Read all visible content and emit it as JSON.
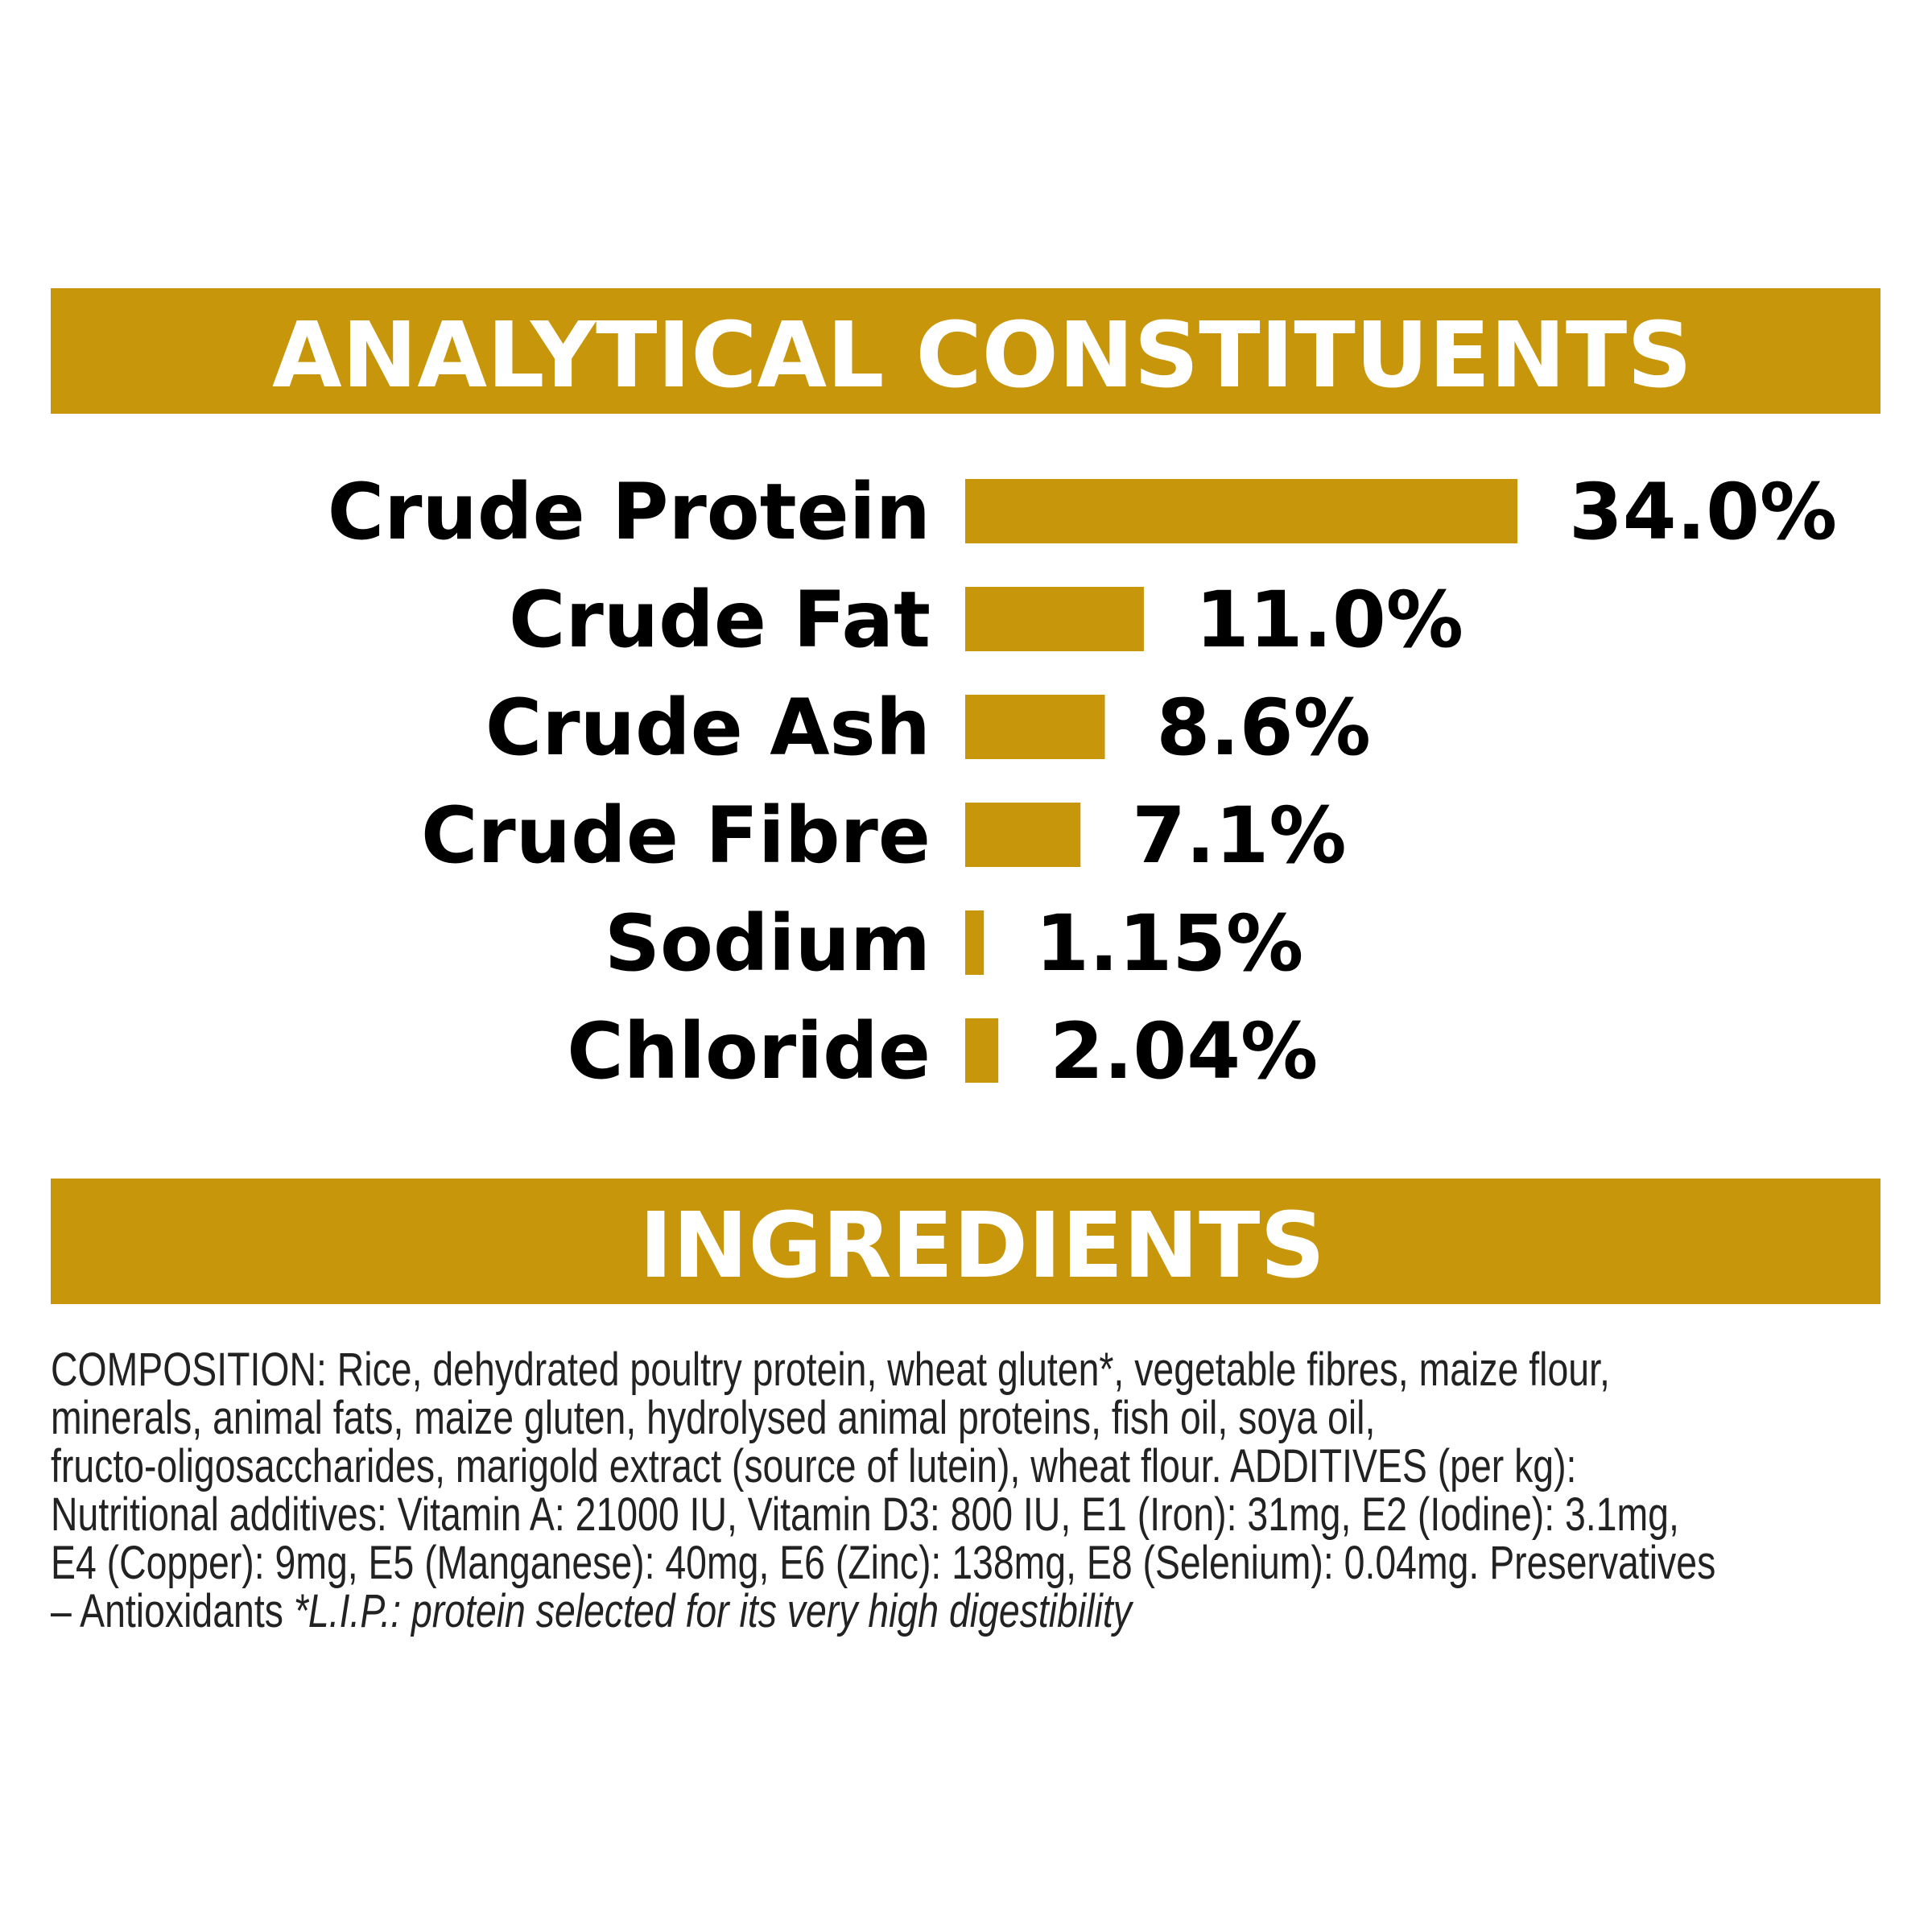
{
  "chart_data": {
    "type": "bar",
    "orientation": "horizontal",
    "title": "ANALYTICAL CONSTITUENTS",
    "categories": [
      "Crude Protein",
      "Crude Fat",
      "Crude Ash",
      "Crude Fibre",
      "Sodium",
      "Chloride"
    ],
    "values": [
      34.0,
      11.0,
      8.6,
      7.1,
      1.15,
      2.04
    ],
    "value_labels": [
      "34.0%",
      "11.0%",
      "8.6%",
      "7.1%",
      "1.15%",
      "2.04%"
    ],
    "color": "#c8960a"
  },
  "ingredients": {
    "title": "INGREDIENTS",
    "lines": [
      "COMPOSITION: Rice, dehydrated poultry protein, wheat gluten*, vegetable fibres, maize flour,",
      "minerals, animal fats, maize gluten, hydrolysed animal proteins, fish oil, soya oil,",
      "fructo-oligosaccharides, marigold extract (source of lutein), wheat flour. ADDITIVES (per kg):",
      "Nutritional additives: Vitamin A: 21000 IU, Vitamin D3: 800 IU, E1 (Iron): 31mg, E2 (Iodine): 3.1mg,",
      "E4 (Copper): 9mg, E5 (Manganese): 40mg, E6 (Zinc): 138mg, E8 (Selenium): 0.04mg. Preservatives",
      "– Antioxidants"
    ],
    "footnote": "*L.I.P.: protein selected for its very high digestibility"
  }
}
